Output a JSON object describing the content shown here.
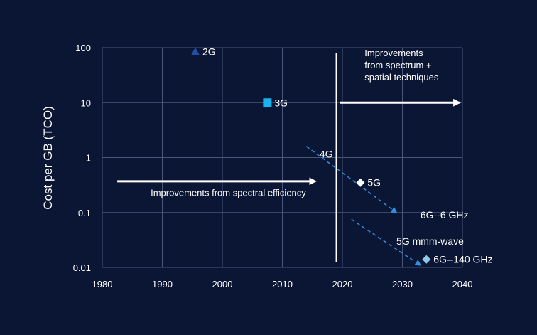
{
  "chart_data": {
    "type": "scatter",
    "title": "",
    "xlabel": "",
    "ylabel": "Cost per GB (TCO)",
    "xlim": [
      1980,
      2040
    ],
    "ylim": [
      0.01,
      100
    ],
    "yscale": "log",
    "grid": true,
    "x_ticks": [
      "1980",
      "1990",
      "2000",
      "2010",
      "2020",
      "2030",
      "2040"
    ],
    "y_ticks": [
      "100",
      "10",
      "1",
      "0.1",
      "0.01"
    ],
    "points": [
      {
        "label": "2G",
        "x": 1995.5,
        "y": 85,
        "marker": "triangle",
        "color": "#1f4fa8"
      },
      {
        "label": "3G",
        "x": 2007.5,
        "y": 10,
        "marker": "square",
        "color": "#18b4f0"
      },
      {
        "label": "5G",
        "x": 2023,
        "y": 0.35,
        "marker": "diamond",
        "color": "#ffffff"
      },
      {
        "label": "6G--140 GHz",
        "x": 2034,
        "y": 0.014,
        "marker": "diamond",
        "color": "#8fc7e8"
      }
    ],
    "labels": [
      {
        "text": "4G",
        "x": 2016.2,
        "y": 1.0
      },
      {
        "text": "6G--6 GHz",
        "x": 2033,
        "y": 0.078
      },
      {
        "text": "5G mmm-wave",
        "x": 2029,
        "y": 0.026
      }
    ],
    "trend_arrows": [
      {
        "from": [
          2014,
          1.6
        ],
        "to": [
          2029,
          0.1
        ],
        "style": "dashed",
        "color": "#2f8fe0"
      },
      {
        "from": [
          2021.5,
          0.075
        ],
        "to": [
          2033,
          0.011
        ],
        "style": "dashed",
        "color": "#2f8fe0"
      }
    ],
    "divider_x": 2019,
    "annotations": [
      {
        "lines": [
          "Improvements from spectral efficiency"
        ],
        "x": 2001,
        "y": 0.2,
        "anchor": "middle"
      },
      {
        "lines": [
          "Improvements",
          "from spectrum +",
          "spatial techniques"
        ],
        "x": 2023.7,
        "y": 70,
        "anchor": "start"
      }
    ],
    "arrows": [
      {
        "from": [
          1982.5,
          0.37
        ],
        "to": [
          2015.5,
          0.37
        ],
        "color": "#ffffff"
      },
      {
        "from": [
          2019.6,
          10
        ],
        "to": [
          2039.5,
          10
        ],
        "color": "#ffffff"
      }
    ],
    "colors": {
      "background": "#0b1635",
      "grid": "#4a5677",
      "text": "#ffffff"
    }
  }
}
